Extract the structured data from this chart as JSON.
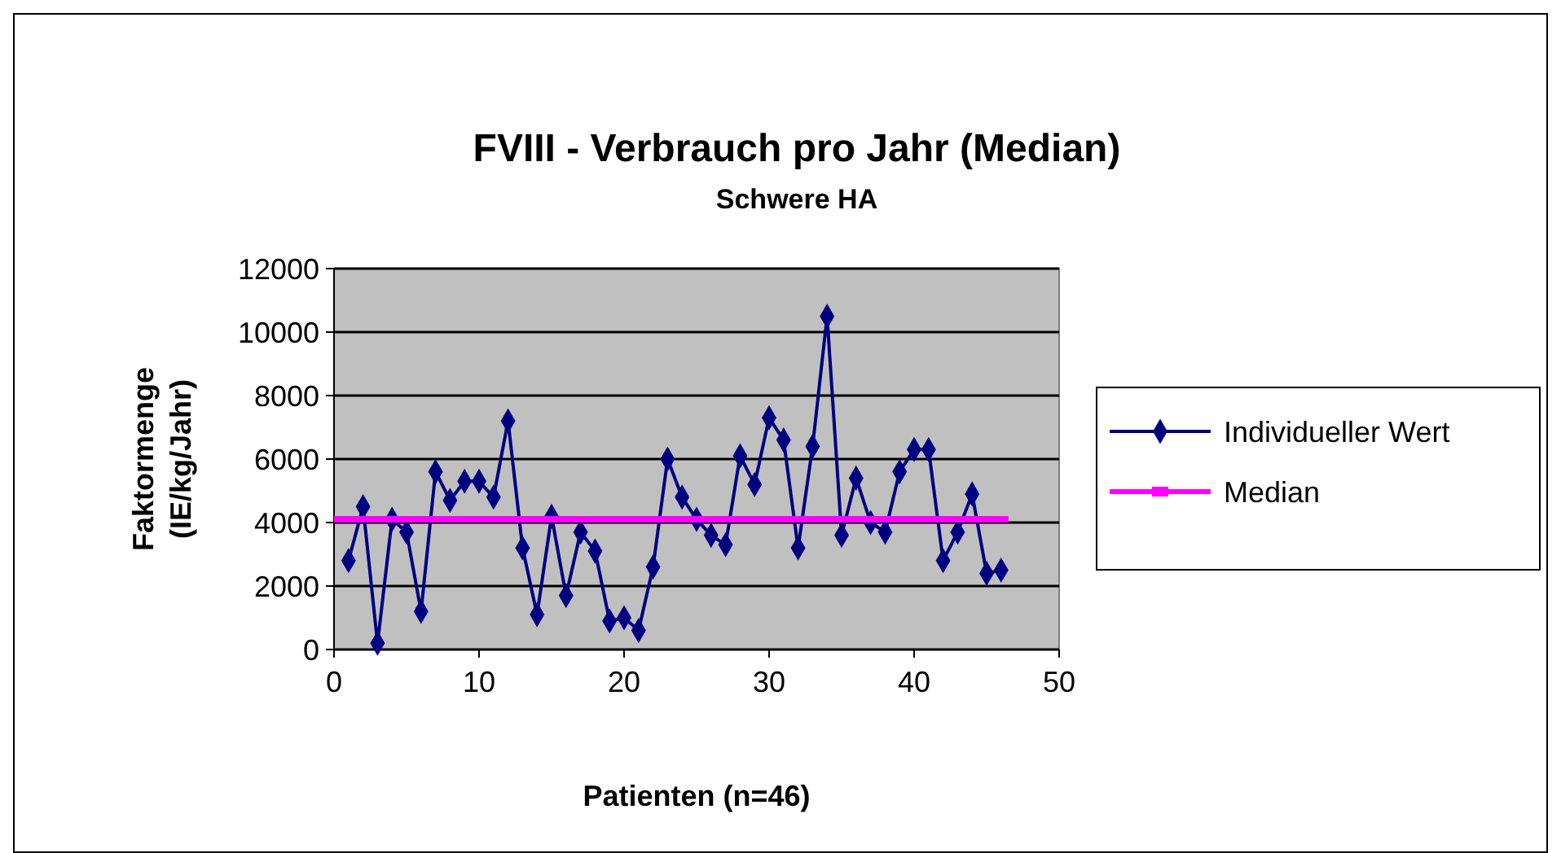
{
  "chart_data": {
    "type": "line",
    "title": "FVIII - Verbrauch pro Jahr (Median)",
    "subtitle": "Schwere HA",
    "xlabel": "Patienten (n=46)",
    "ylabel": "Faktormenge\n(IE/kg/Jahr)",
    "xlim": [
      0,
      50
    ],
    "xticks": [
      0,
      10,
      20,
      30,
      40,
      50
    ],
    "ylim": [
      0,
      12000
    ],
    "yticks": [
      0,
      2000,
      4000,
      6000,
      8000,
      10000,
      12000
    ],
    "grid": "y",
    "legend": "right",
    "series": [
      {
        "name": "Individueller Wert",
        "color": "#000080",
        "marker": "diamond",
        "x": [
          1,
          2,
          3,
          4,
          5,
          6,
          7,
          8,
          9,
          10,
          11,
          12,
          13,
          14,
          15,
          16,
          17,
          18,
          19,
          20,
          21,
          22,
          23,
          24,
          25,
          26,
          27,
          28,
          29,
          30,
          31,
          32,
          33,
          34,
          35,
          36,
          37,
          38,
          39,
          40,
          41,
          42,
          43,
          44,
          45,
          46
        ],
        "values": [
          2800,
          4500,
          200,
          4100,
          3700,
          1200,
          5600,
          4700,
          5300,
          5300,
          4800,
          7200,
          3200,
          1100,
          4200,
          1700,
          3700,
          3100,
          900,
          1000,
          600,
          2600,
          6000,
          4800,
          4100,
          3600,
          3300,
          6100,
          5200,
          7300,
          6600,
          3200,
          6400,
          10500,
          3600,
          5400,
          4000,
          3700,
          5600,
          6300,
          6300,
          2800,
          3700,
          4900,
          2400,
          2500
        ]
      },
      {
        "name": "Median",
        "color": "#ff00ff",
        "marker": "none",
        "x": [
          0,
          46.5
        ],
        "values": [
          4100,
          4100
        ]
      }
    ]
  }
}
